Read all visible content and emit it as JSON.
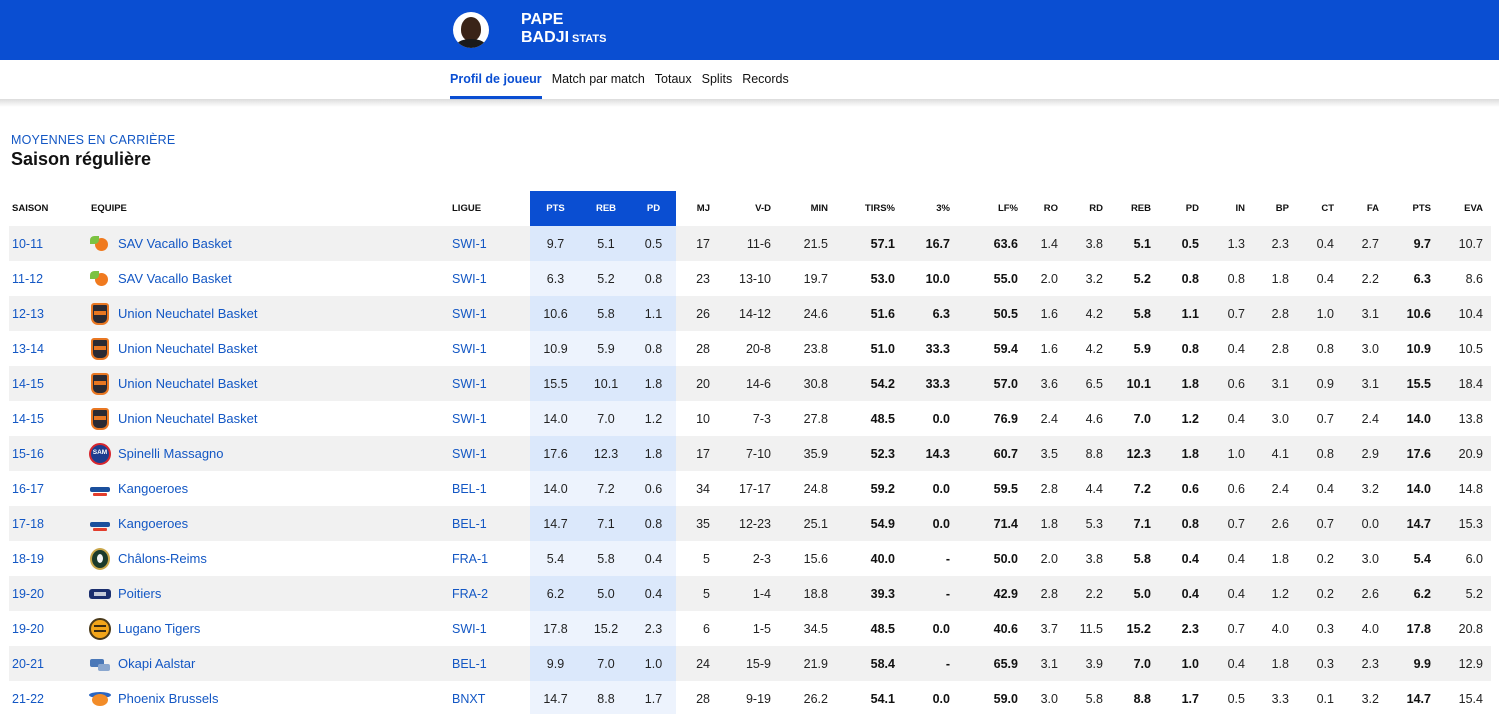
{
  "header": {
    "first_name": "PAPE",
    "last_name": "BADJI",
    "stats_tag": "STATS"
  },
  "tabs": [
    {
      "label": "Profil de joueur",
      "active": true
    },
    {
      "label": "Match par match",
      "active": false
    },
    {
      "label": "Totaux",
      "active": false
    },
    {
      "label": "Splits",
      "active": false
    },
    {
      "label": "Records",
      "active": false
    }
  ],
  "section": {
    "kicker": "MOYENNES EN CARRIÈRE",
    "title": "Saison régulière"
  },
  "table": {
    "columns": [
      "SAISON",
      "EQUIPE",
      "LIGUE",
      "PTS",
      "REB",
      "PD",
      "MJ",
      "V-D",
      "MIN",
      "TIRS%",
      "3%",
      "LF%",
      "RO",
      "RD",
      "REB",
      "PD",
      "IN",
      "BP",
      "CT",
      "FA",
      "PTS",
      "EVA"
    ],
    "rows": [
      {
        "saison": "10-11",
        "equipe": "SAV Vacallo Basket",
        "logo": "vacallo",
        "ligue": "SWI-1",
        "pts_hl": "9.7",
        "reb_hl": "5.1",
        "pd_hl": "0.5",
        "mj": "17",
        "vd": "11-6",
        "min": "21.5",
        "tirs": "57.1",
        "p3": "16.7",
        "lf": "63.6",
        "ro": "1.4",
        "rd": "3.8",
        "reb": "5.1",
        "pd": "0.5",
        "in": "1.3",
        "bp": "2.3",
        "ct": "0.4",
        "fa": "2.7",
        "pts": "9.7",
        "eva": "10.7"
      },
      {
        "saison": "11-12",
        "equipe": "SAV Vacallo Basket",
        "logo": "vacallo",
        "ligue": "SWI-1",
        "pts_hl": "6.3",
        "reb_hl": "5.2",
        "pd_hl": "0.8",
        "mj": "23",
        "vd": "13-10",
        "min": "19.7",
        "tirs": "53.0",
        "p3": "10.0",
        "lf": "55.0",
        "ro": "2.0",
        "rd": "3.2",
        "reb": "5.2",
        "pd": "0.8",
        "in": "0.8",
        "bp": "1.8",
        "ct": "0.4",
        "fa": "2.2",
        "pts": "6.3",
        "eva": "8.6"
      },
      {
        "saison": "12-13",
        "equipe": "Union Neuchatel Basket",
        "logo": "union",
        "ligue": "SWI-1",
        "pts_hl": "10.6",
        "reb_hl": "5.8",
        "pd_hl": "1.1",
        "mj": "26",
        "vd": "14-12",
        "min": "24.6",
        "tirs": "51.6",
        "p3": "6.3",
        "lf": "50.5",
        "ro": "1.6",
        "rd": "4.2",
        "reb": "5.8",
        "pd": "1.1",
        "in": "0.7",
        "bp": "2.8",
        "ct": "1.0",
        "fa": "3.1",
        "pts": "10.6",
        "eva": "10.4"
      },
      {
        "saison": "13-14",
        "equipe": "Union Neuchatel Basket",
        "logo": "union",
        "ligue": "SWI-1",
        "pts_hl": "10.9",
        "reb_hl": "5.9",
        "pd_hl": "0.8",
        "mj": "28",
        "vd": "20-8",
        "min": "23.8",
        "tirs": "51.0",
        "p3": "33.3",
        "lf": "59.4",
        "ro": "1.6",
        "rd": "4.2",
        "reb": "5.9",
        "pd": "0.8",
        "in": "0.4",
        "bp": "2.8",
        "ct": "0.8",
        "fa": "3.0",
        "pts": "10.9",
        "eva": "10.5"
      },
      {
        "saison": "14-15",
        "equipe": "Union Neuchatel Basket",
        "logo": "union",
        "ligue": "SWI-1",
        "pts_hl": "15.5",
        "reb_hl": "10.1",
        "pd_hl": "1.8",
        "mj": "20",
        "vd": "14-6",
        "min": "30.8",
        "tirs": "54.2",
        "p3": "33.3",
        "lf": "57.0",
        "ro": "3.6",
        "rd": "6.5",
        "reb": "10.1",
        "pd": "1.8",
        "in": "0.6",
        "bp": "3.1",
        "ct": "0.9",
        "fa": "3.1",
        "pts": "15.5",
        "eva": "18.4"
      },
      {
        "saison": "14-15",
        "equipe": "Union Neuchatel Basket",
        "logo": "union",
        "ligue": "SWI-1",
        "pts_hl": "14.0",
        "reb_hl": "7.0",
        "pd_hl": "1.2",
        "mj": "10",
        "vd": "7-3",
        "min": "27.8",
        "tirs": "48.5",
        "p3": "0.0",
        "lf": "76.9",
        "ro": "2.4",
        "rd": "4.6",
        "reb": "7.0",
        "pd": "1.2",
        "in": "0.4",
        "bp": "3.0",
        "ct": "0.7",
        "fa": "2.4",
        "pts": "14.0",
        "eva": "13.8"
      },
      {
        "saison": "15-16",
        "equipe": "Spinelli Massagno",
        "logo": "spinelli",
        "logo_text": "SAM",
        "ligue": "SWI-1",
        "pts_hl": "17.6",
        "reb_hl": "12.3",
        "pd_hl": "1.8",
        "mj": "17",
        "vd": "7-10",
        "min": "35.9",
        "tirs": "52.3",
        "p3": "14.3",
        "lf": "60.7",
        "ro": "3.5",
        "rd": "8.8",
        "reb": "12.3",
        "pd": "1.8",
        "in": "1.0",
        "bp": "4.1",
        "ct": "0.8",
        "fa": "2.9",
        "pts": "17.6",
        "eva": "20.9"
      },
      {
        "saison": "16-17",
        "equipe": "Kangoeroes",
        "logo": "kangoeroes",
        "ligue": "BEL-1",
        "pts_hl": "14.0",
        "reb_hl": "7.2",
        "pd_hl": "0.6",
        "mj": "34",
        "vd": "17-17",
        "min": "24.8",
        "tirs": "59.2",
        "p3": "0.0",
        "lf": "59.5",
        "ro": "2.8",
        "rd": "4.4",
        "reb": "7.2",
        "pd": "0.6",
        "in": "0.6",
        "bp": "2.4",
        "ct": "0.4",
        "fa": "3.2",
        "pts": "14.0",
        "eva": "14.8"
      },
      {
        "saison": "17-18",
        "equipe": "Kangoeroes",
        "logo": "kangoeroes",
        "ligue": "BEL-1",
        "pts_hl": "14.7",
        "reb_hl": "7.1",
        "pd_hl": "0.8",
        "mj": "35",
        "vd": "12-23",
        "min": "25.1",
        "tirs": "54.9",
        "p3": "0.0",
        "lf": "71.4",
        "ro": "1.8",
        "rd": "5.3",
        "reb": "7.1",
        "pd": "0.8",
        "in": "0.7",
        "bp": "2.6",
        "ct": "0.7",
        "fa": "0.0",
        "pts": "14.7",
        "eva": "15.3"
      },
      {
        "saison": "18-19",
        "equipe": "Châlons-Reims",
        "logo": "chalons",
        "ligue": "FRA-1",
        "pts_hl": "5.4",
        "reb_hl": "5.8",
        "pd_hl": "0.4",
        "mj": "5",
        "vd": "2-3",
        "min": "15.6",
        "tirs": "40.0",
        "p3": "-",
        "lf": "50.0",
        "ro": "2.0",
        "rd": "3.8",
        "reb": "5.8",
        "pd": "0.4",
        "in": "0.4",
        "bp": "1.8",
        "ct": "0.2",
        "fa": "3.0",
        "pts": "5.4",
        "eva": "6.0"
      },
      {
        "saison": "19-20",
        "equipe": "Poitiers",
        "logo": "poitiers",
        "ligue": "FRA-2",
        "pts_hl": "6.2",
        "reb_hl": "5.0",
        "pd_hl": "0.4",
        "mj": "5",
        "vd": "1-4",
        "min": "18.8",
        "tirs": "39.3",
        "p3": "-",
        "lf": "42.9",
        "ro": "2.8",
        "rd": "2.2",
        "reb": "5.0",
        "pd": "0.4",
        "in": "0.4",
        "bp": "1.2",
        "ct": "0.2",
        "fa": "2.6",
        "pts": "6.2",
        "eva": "5.2"
      },
      {
        "saison": "19-20",
        "equipe": "Lugano Tigers",
        "logo": "lugano",
        "ligue": "SWI-1",
        "pts_hl": "17.8",
        "reb_hl": "15.2",
        "pd_hl": "2.3",
        "mj": "6",
        "vd": "1-5",
        "min": "34.5",
        "tirs": "48.5",
        "p3": "0.0",
        "lf": "40.6",
        "ro": "3.7",
        "rd": "11.5",
        "reb": "15.2",
        "pd": "2.3",
        "in": "0.7",
        "bp": "4.0",
        "ct": "0.3",
        "fa": "4.0",
        "pts": "17.8",
        "eva": "20.8"
      },
      {
        "saison": "20-21",
        "equipe": "Okapi Aalstar",
        "logo": "okapi",
        "ligue": "BEL-1",
        "pts_hl": "9.9",
        "reb_hl": "7.0",
        "pd_hl": "1.0",
        "mj": "24",
        "vd": "15-9",
        "min": "21.9",
        "tirs": "58.4",
        "p3": "-",
        "lf": "65.9",
        "ro": "3.1",
        "rd": "3.9",
        "reb": "7.0",
        "pd": "1.0",
        "in": "0.4",
        "bp": "1.8",
        "ct": "0.3",
        "fa": "2.3",
        "pts": "9.9",
        "eva": "12.9"
      },
      {
        "saison": "21-22",
        "equipe": "Phoenix Brussels",
        "logo": "phoenix",
        "ligue": "BNXT",
        "pts_hl": "14.7",
        "reb_hl": "8.8",
        "pd_hl": "1.7",
        "mj": "28",
        "vd": "9-19",
        "min": "26.2",
        "tirs": "54.1",
        "p3": "0.0",
        "lf": "59.0",
        "ro": "3.0",
        "rd": "5.8",
        "reb": "8.8",
        "pd": "1.7",
        "in": "0.5",
        "bp": "3.3",
        "ct": "0.1",
        "fa": "3.2",
        "pts": "14.7",
        "eva": "15.4"
      }
    ]
  }
}
